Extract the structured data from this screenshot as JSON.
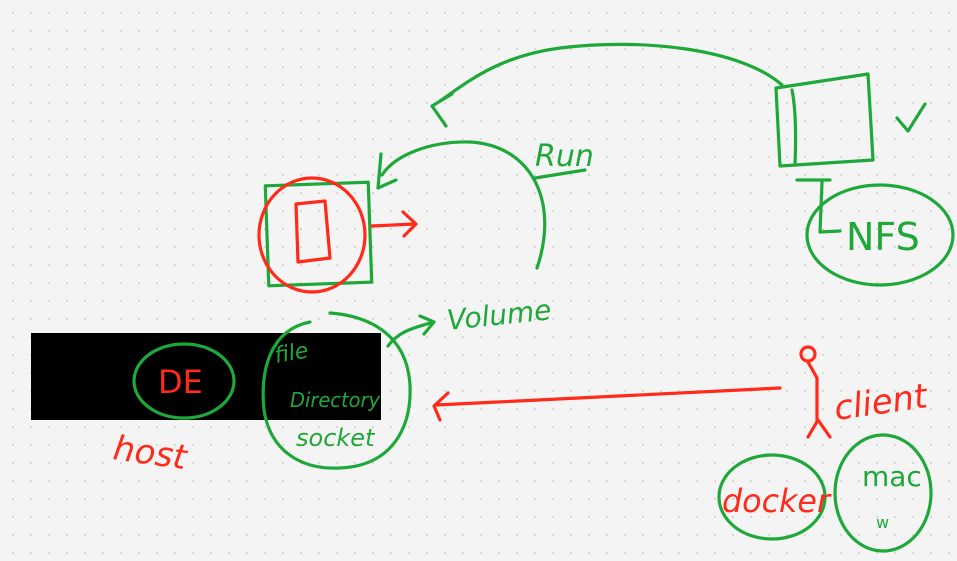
{
  "colors": {
    "green": "#1fa83a",
    "red": "#ff2a1a",
    "black": "#000000",
    "background": "#f4f4f4"
  },
  "labels": {
    "run": "Run",
    "volume": "Volume",
    "nfs": "NFS",
    "de": "DE",
    "host": "host",
    "file": "file",
    "directory": "Directory",
    "socket": "socket",
    "client": "client",
    "docker": "docker",
    "mac": "mac",
    "mac_sub": "w",
    "check": "✓"
  }
}
